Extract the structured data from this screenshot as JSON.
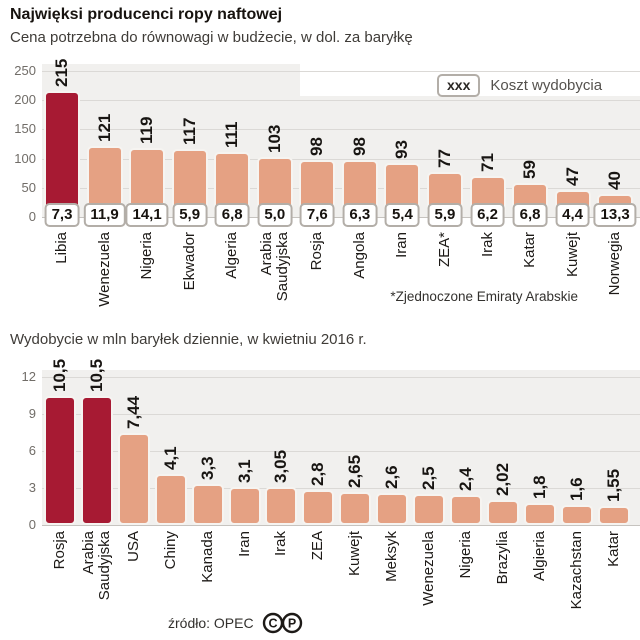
{
  "header": {
    "title": "Najwięksi producenci ropy naftowej",
    "subtitle": "Cena potrzebna do równowagi w budżecie, w dol. za baryłkę"
  },
  "legend": {
    "box_label": "xxx",
    "label": "Koszt wydobycia"
  },
  "source": {
    "label": "źródło: OPEC",
    "icons": [
      "copyright-icon",
      "phonogram-icon"
    ]
  },
  "colors": {
    "highlight_bar": "#a71a33",
    "bar": "#e5a183",
    "plot_background": "#f1f0ee",
    "gridline": "#dbd9d6"
  },
  "chart_data": [
    {
      "type": "bar",
      "title": "Cena potrzebna do równowagi w budżecie, w dol. za baryłkę",
      "xlabel": "",
      "ylabel": "dol. za baryłkę",
      "ylim": [
        0,
        250
      ],
      "yticks": [
        0,
        50,
        100,
        150,
        200,
        250
      ],
      "grid": true,
      "categories": [
        "Libia",
        "Wenezuela",
        "Nigeria",
        "Ekwador",
        "Algeria",
        "Arabia Saudyjska",
        "Rosja",
        "Angola",
        "Iran",
        "ZEA*",
        "Irak",
        "Katar",
        "Kuwejt",
        "Norwegia"
      ],
      "categories_display": [
        "Libia",
        "Wenezuela",
        "Nigeria",
        "Ekwador",
        "Algeria",
        "Arabia\nSaudyjska",
        "Rosja",
        "Angola",
        "Iran",
        "ZEA*",
        "Irak",
        "Katar",
        "Kuwejt",
        "Norwegia"
      ],
      "values": [
        215,
        121,
        119,
        117,
        111,
        103,
        98,
        98,
        93,
        77,
        71,
        59,
        47,
        40
      ],
      "value_labels": [
        "215",
        "121",
        "119",
        "117",
        "111",
        "103",
        "98",
        "98",
        "93",
        "77",
        "71",
        "59",
        "47",
        "40"
      ],
      "extraction_costs": [
        7.3,
        11.9,
        14.1,
        5.9,
        6.8,
        5.0,
        7.6,
        6.3,
        5.4,
        5.9,
        6.2,
        6.8,
        4.4,
        13.3
      ],
      "extraction_cost_labels": [
        "7,3",
        "11,9",
        "14,1",
        "5,9",
        "6,8",
        "5,0",
        "7,6",
        "6,3",
        "5,4",
        "5,9",
        "6,2",
        "6,8",
        "4,4",
        "13,3"
      ],
      "highlight_indexes": [
        0
      ],
      "footnote": "*Zjednoczone Emiraty Arabskie",
      "legend_position": "top-right"
    },
    {
      "type": "bar",
      "title": "Wydobycie w mln baryłek dziennie, w kwietniu 2016 r.",
      "xlabel": "",
      "ylabel": "mln baryłek dziennie",
      "ylim": [
        0,
        12
      ],
      "yticks": [
        0,
        3,
        6,
        9,
        12
      ],
      "grid": true,
      "categories": [
        "Rosja",
        "Arabia Saudyjska",
        "USA",
        "Chiny",
        "Kanada",
        "Iran",
        "Irak",
        "ZEA",
        "Kuwejt",
        "Meksyk",
        "Wenezuela",
        "Nigeria",
        "Brazylia",
        "Algieria",
        "Kazachstan",
        "Katar"
      ],
      "categories_display": [
        "Rosja",
        "Arabia\nSaudyjska",
        "USA",
        "Chiny",
        "Kanada",
        "Iran",
        "Irak",
        "ZEA",
        "Kuwejt",
        "Meksyk",
        "Wenezuela",
        "Nigeria",
        "Brazylia",
        "Algieria",
        "Kazachstan",
        "Katar"
      ],
      "values": [
        10.5,
        10.5,
        7.44,
        4.1,
        3.3,
        3.1,
        3.05,
        2.8,
        2.65,
        2.6,
        2.5,
        2.4,
        2.02,
        1.8,
        1.6,
        1.55
      ],
      "value_labels": [
        "10,5",
        "10,5",
        "7,44",
        "4,1",
        "3,3",
        "3,1",
        "3,05",
        "2,8",
        "2,65",
        "2,6",
        "2,5",
        "2,4",
        "2,02",
        "1,8",
        "1,6",
        "1,55"
      ],
      "highlight_indexes": [
        0,
        1
      ]
    }
  ]
}
